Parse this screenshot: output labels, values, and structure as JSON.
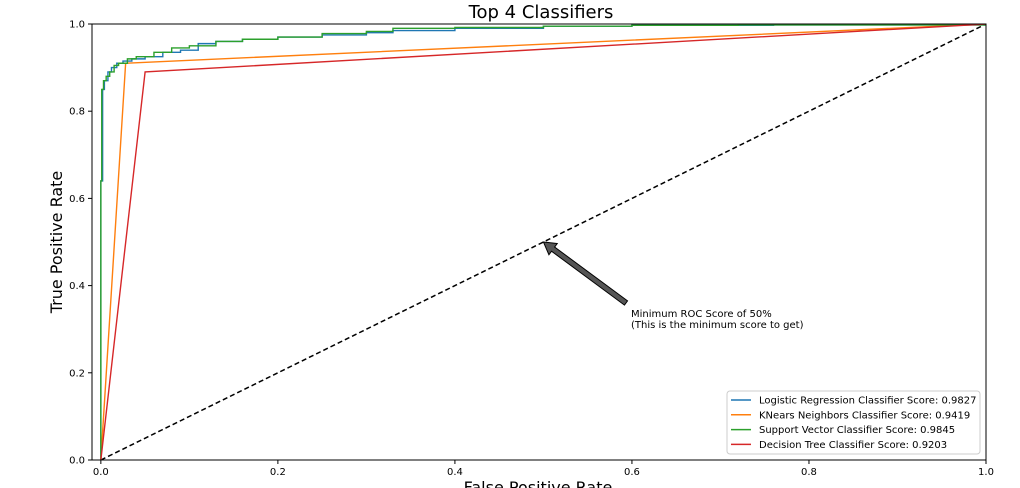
{
  "chart_data": {
    "type": "line",
    "title": "Top 4 Classifiers",
    "xlabel": "False Positive Rate",
    "ylabel": "True Positive Rate",
    "xlim": [
      -0.01,
      1.0
    ],
    "ylim": [
      0.0,
      1.0
    ],
    "xticks": [
      "0.0",
      "0.2",
      "0.4",
      "0.6",
      "0.8",
      "1.0"
    ],
    "yticks": [
      "0.0",
      "0.2",
      "0.4",
      "0.6",
      "0.8",
      "1.0"
    ],
    "grid": false,
    "legend_position": "lower-right",
    "series": [
      {
        "name": "Logistic Regression Classifier Score: 0.9827",
        "color": "#1f77b4",
        "points": [
          [
            0,
            0
          ],
          [
            0,
            0.64
          ],
          [
            0.002,
            0.64
          ],
          [
            0.002,
            0.85
          ],
          [
            0.004,
            0.87
          ],
          [
            0.008,
            0.89
          ],
          [
            0.012,
            0.9
          ],
          [
            0.018,
            0.91
          ],
          [
            0.025,
            0.915
          ],
          [
            0.035,
            0.92
          ],
          [
            0.05,
            0.925
          ],
          [
            0.07,
            0.935
          ],
          [
            0.09,
            0.94
          ],
          [
            0.11,
            0.955
          ],
          [
            0.13,
            0.96
          ],
          [
            0.16,
            0.965
          ],
          [
            0.2,
            0.97
          ],
          [
            0.25,
            0.975
          ],
          [
            0.3,
            0.98
          ],
          [
            0.33,
            0.985
          ],
          [
            0.4,
            0.99
          ],
          [
            0.5,
            0.995
          ],
          [
            0.6,
            0.997
          ],
          [
            0.76,
            0.998
          ],
          [
            1.0,
            1.0
          ]
        ]
      },
      {
        "name": "KNears Neighbors Classifier Score: 0.9419",
        "color": "#ff7f0e",
        "points": [
          [
            0,
            0
          ],
          [
            0.028,
            0.91
          ],
          [
            1.0,
            1.0
          ]
        ]
      },
      {
        "name": "Support Vector Classifier Score: 0.9845",
        "color": "#2ca02c",
        "points": [
          [
            0,
            0
          ],
          [
            0,
            0.64
          ],
          [
            0.001,
            0.64
          ],
          [
            0.001,
            0.85
          ],
          [
            0.003,
            0.87
          ],
          [
            0.006,
            0.88
          ],
          [
            0.01,
            0.89
          ],
          [
            0.015,
            0.905
          ],
          [
            0.02,
            0.91
          ],
          [
            0.03,
            0.92
          ],
          [
            0.04,
            0.925
          ],
          [
            0.06,
            0.935
          ],
          [
            0.08,
            0.945
          ],
          [
            0.1,
            0.95
          ],
          [
            0.13,
            0.96
          ],
          [
            0.16,
            0.965
          ],
          [
            0.2,
            0.97
          ],
          [
            0.25,
            0.978
          ],
          [
            0.3,
            0.983
          ],
          [
            0.33,
            0.99
          ],
          [
            0.4,
            0.992
          ],
          [
            0.5,
            0.995
          ],
          [
            0.6,
            0.997
          ],
          [
            0.72,
            0.998
          ],
          [
            1.0,
            1.0
          ]
        ]
      },
      {
        "name": "Decision Tree Classifier Score: 0.9203",
        "color": "#d62728",
        "points": [
          [
            0,
            0
          ],
          [
            0.05,
            0.89
          ],
          [
            1.0,
            1.0
          ]
        ]
      }
    ],
    "reference_line": {
      "style": "dashed",
      "color": "#000000",
      "points": [
        [
          0,
          0
        ],
        [
          1,
          1
        ]
      ]
    },
    "annotation": {
      "text_line1": "Minimum ROC Score of 50%",
      "text_line2": " (This is the minimum score to get)",
      "arrow_color": "#555555",
      "target": [
        0.5,
        0.5
      ],
      "text_at": [
        0.6,
        0.31
      ]
    }
  }
}
